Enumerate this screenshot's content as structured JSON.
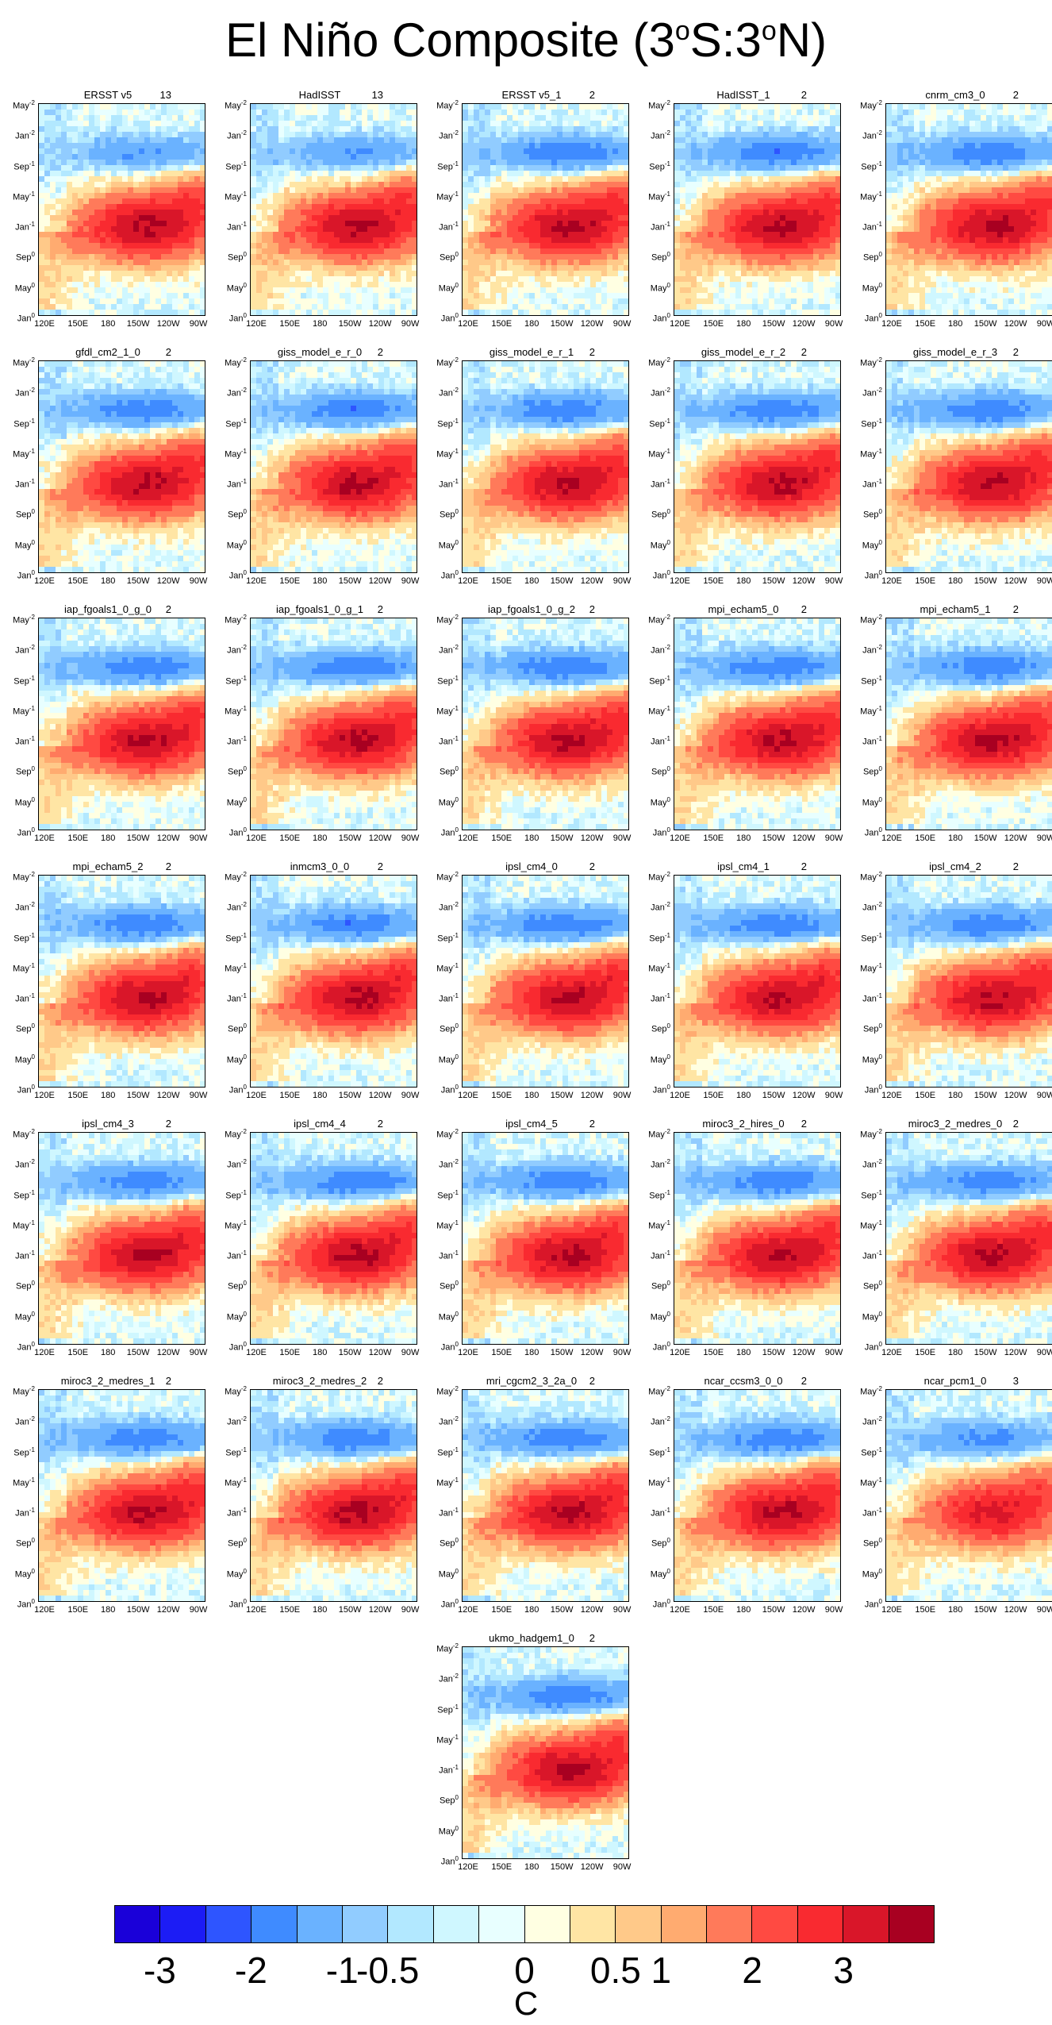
{
  "title": {
    "prefix": "El Niño Composite (3",
    "deg1": "o",
    "mid": "S:3",
    "deg2": "o",
    "suffix": "N)"
  },
  "colorbar": {
    "colors": [
      "#1a00d9",
      "#1c1cf5",
      "#2e55ff",
      "#3f8bff",
      "#6ab2ff",
      "#91ccff",
      "#b2e8ff",
      "#cff7ff",
      "#e8ffff",
      "#ffffe2",
      "#ffe5a4",
      "#ffc989",
      "#ffab70",
      "#ff7a5a",
      "#ff4a42",
      "#f92a30",
      "#d91629",
      "#a80021"
    ],
    "labels": [
      "-3",
      "-2",
      "-1",
      "-0.5",
      "0",
      "0.5",
      "1",
      "2",
      "3"
    ],
    "unit": "C"
  },
  "panels": [
    {
      "name": "ERSST v5",
      "count": "13"
    },
    {
      "name": "HadISST",
      "count": "13"
    },
    {
      "name": "ERSST v5_1",
      "count": "2"
    },
    {
      "name": "HadISST_1",
      "count": "2"
    },
    {
      "name": "cnrm_cm3_0",
      "count": "2"
    },
    {
      "name": "gfdl_cm2_1_0",
      "count": "2"
    },
    {
      "name": "giss_model_e_r_0",
      "count": "2"
    },
    {
      "name": "giss_model_e_r_1",
      "count": "2"
    },
    {
      "name": "giss_model_e_r_2",
      "count": "2"
    },
    {
      "name": "giss_model_e_r_3",
      "count": "2"
    },
    {
      "name": "iap_fgoals1_0_g_0",
      "count": "2"
    },
    {
      "name": "iap_fgoals1_0_g_1",
      "count": "2"
    },
    {
      "name": "iap_fgoals1_0_g_2",
      "count": "2"
    },
    {
      "name": "mpi_echam5_0",
      "count": "2"
    },
    {
      "name": "mpi_echam5_1",
      "count": "2"
    },
    {
      "name": "mpi_echam5_2",
      "count": "2"
    },
    {
      "name": "inmcm3_0_0",
      "count": "2"
    },
    {
      "name": "ipsl_cm4_0",
      "count": "2"
    },
    {
      "name": "ipsl_cm4_1",
      "count": "2"
    },
    {
      "name": "ipsl_cm4_2",
      "count": "2"
    },
    {
      "name": "ipsl_cm4_3",
      "count": "2"
    },
    {
      "name": "ipsl_cm4_4",
      "count": "2"
    },
    {
      "name": "ipsl_cm4_5",
      "count": "2"
    },
    {
      "name": "miroc3_2_hires_0",
      "count": "2"
    },
    {
      "name": "miroc3_2_medres_0",
      "count": "2"
    },
    {
      "name": "miroc3_2_medres_1",
      "count": "2"
    },
    {
      "name": "miroc3_2_medres_2",
      "count": "2"
    },
    {
      "name": "mri_cgcm2_3_2a_0",
      "count": "2"
    },
    {
      "name": "ncar_ccsm3_0_0",
      "count": "2"
    },
    {
      "name": "ncar_pcm1_0",
      "count": "3"
    },
    {
      "name": "ukmo_hadgem1_0",
      "count": "2"
    }
  ],
  "chart_data": {
    "type": "heatmap",
    "title": "El Niño Composite (3°S:3°N)",
    "colorbar_label": "C",
    "colorbar_ticks": [
      "-3",
      "-2",
      "-1",
      "-0.5",
      "0",
      "0.5",
      "1",
      "2",
      "3"
    ],
    "levels": [
      -3,
      -2.5,
      -2,
      -1.5,
      -1,
      -0.5,
      -0.25,
      -0.1,
      0,
      0.1,
      0.25,
      0.5,
      0.75,
      1,
      1.5,
      2,
      2.5,
      3
    ],
    "x_ticks": [
      "120E",
      "150E",
      "180",
      "150W",
      "120W",
      "90W"
    ],
    "y_ticks": [
      {
        "m": "May",
        "e": "-2"
      },
      {
        "m": "Jan",
        "e": "-2"
      },
      {
        "m": "Sep",
        "e": "-1"
      },
      {
        "m": "May",
        "e": "-1"
      },
      {
        "m": "Jan",
        "e": "-1"
      },
      {
        "m": "Sep",
        "e": "0"
      },
      {
        "m": "May",
        "e": "0"
      },
      {
        "m": "Jan",
        "e": "0"
      }
    ],
    "grid": false
  }
}
